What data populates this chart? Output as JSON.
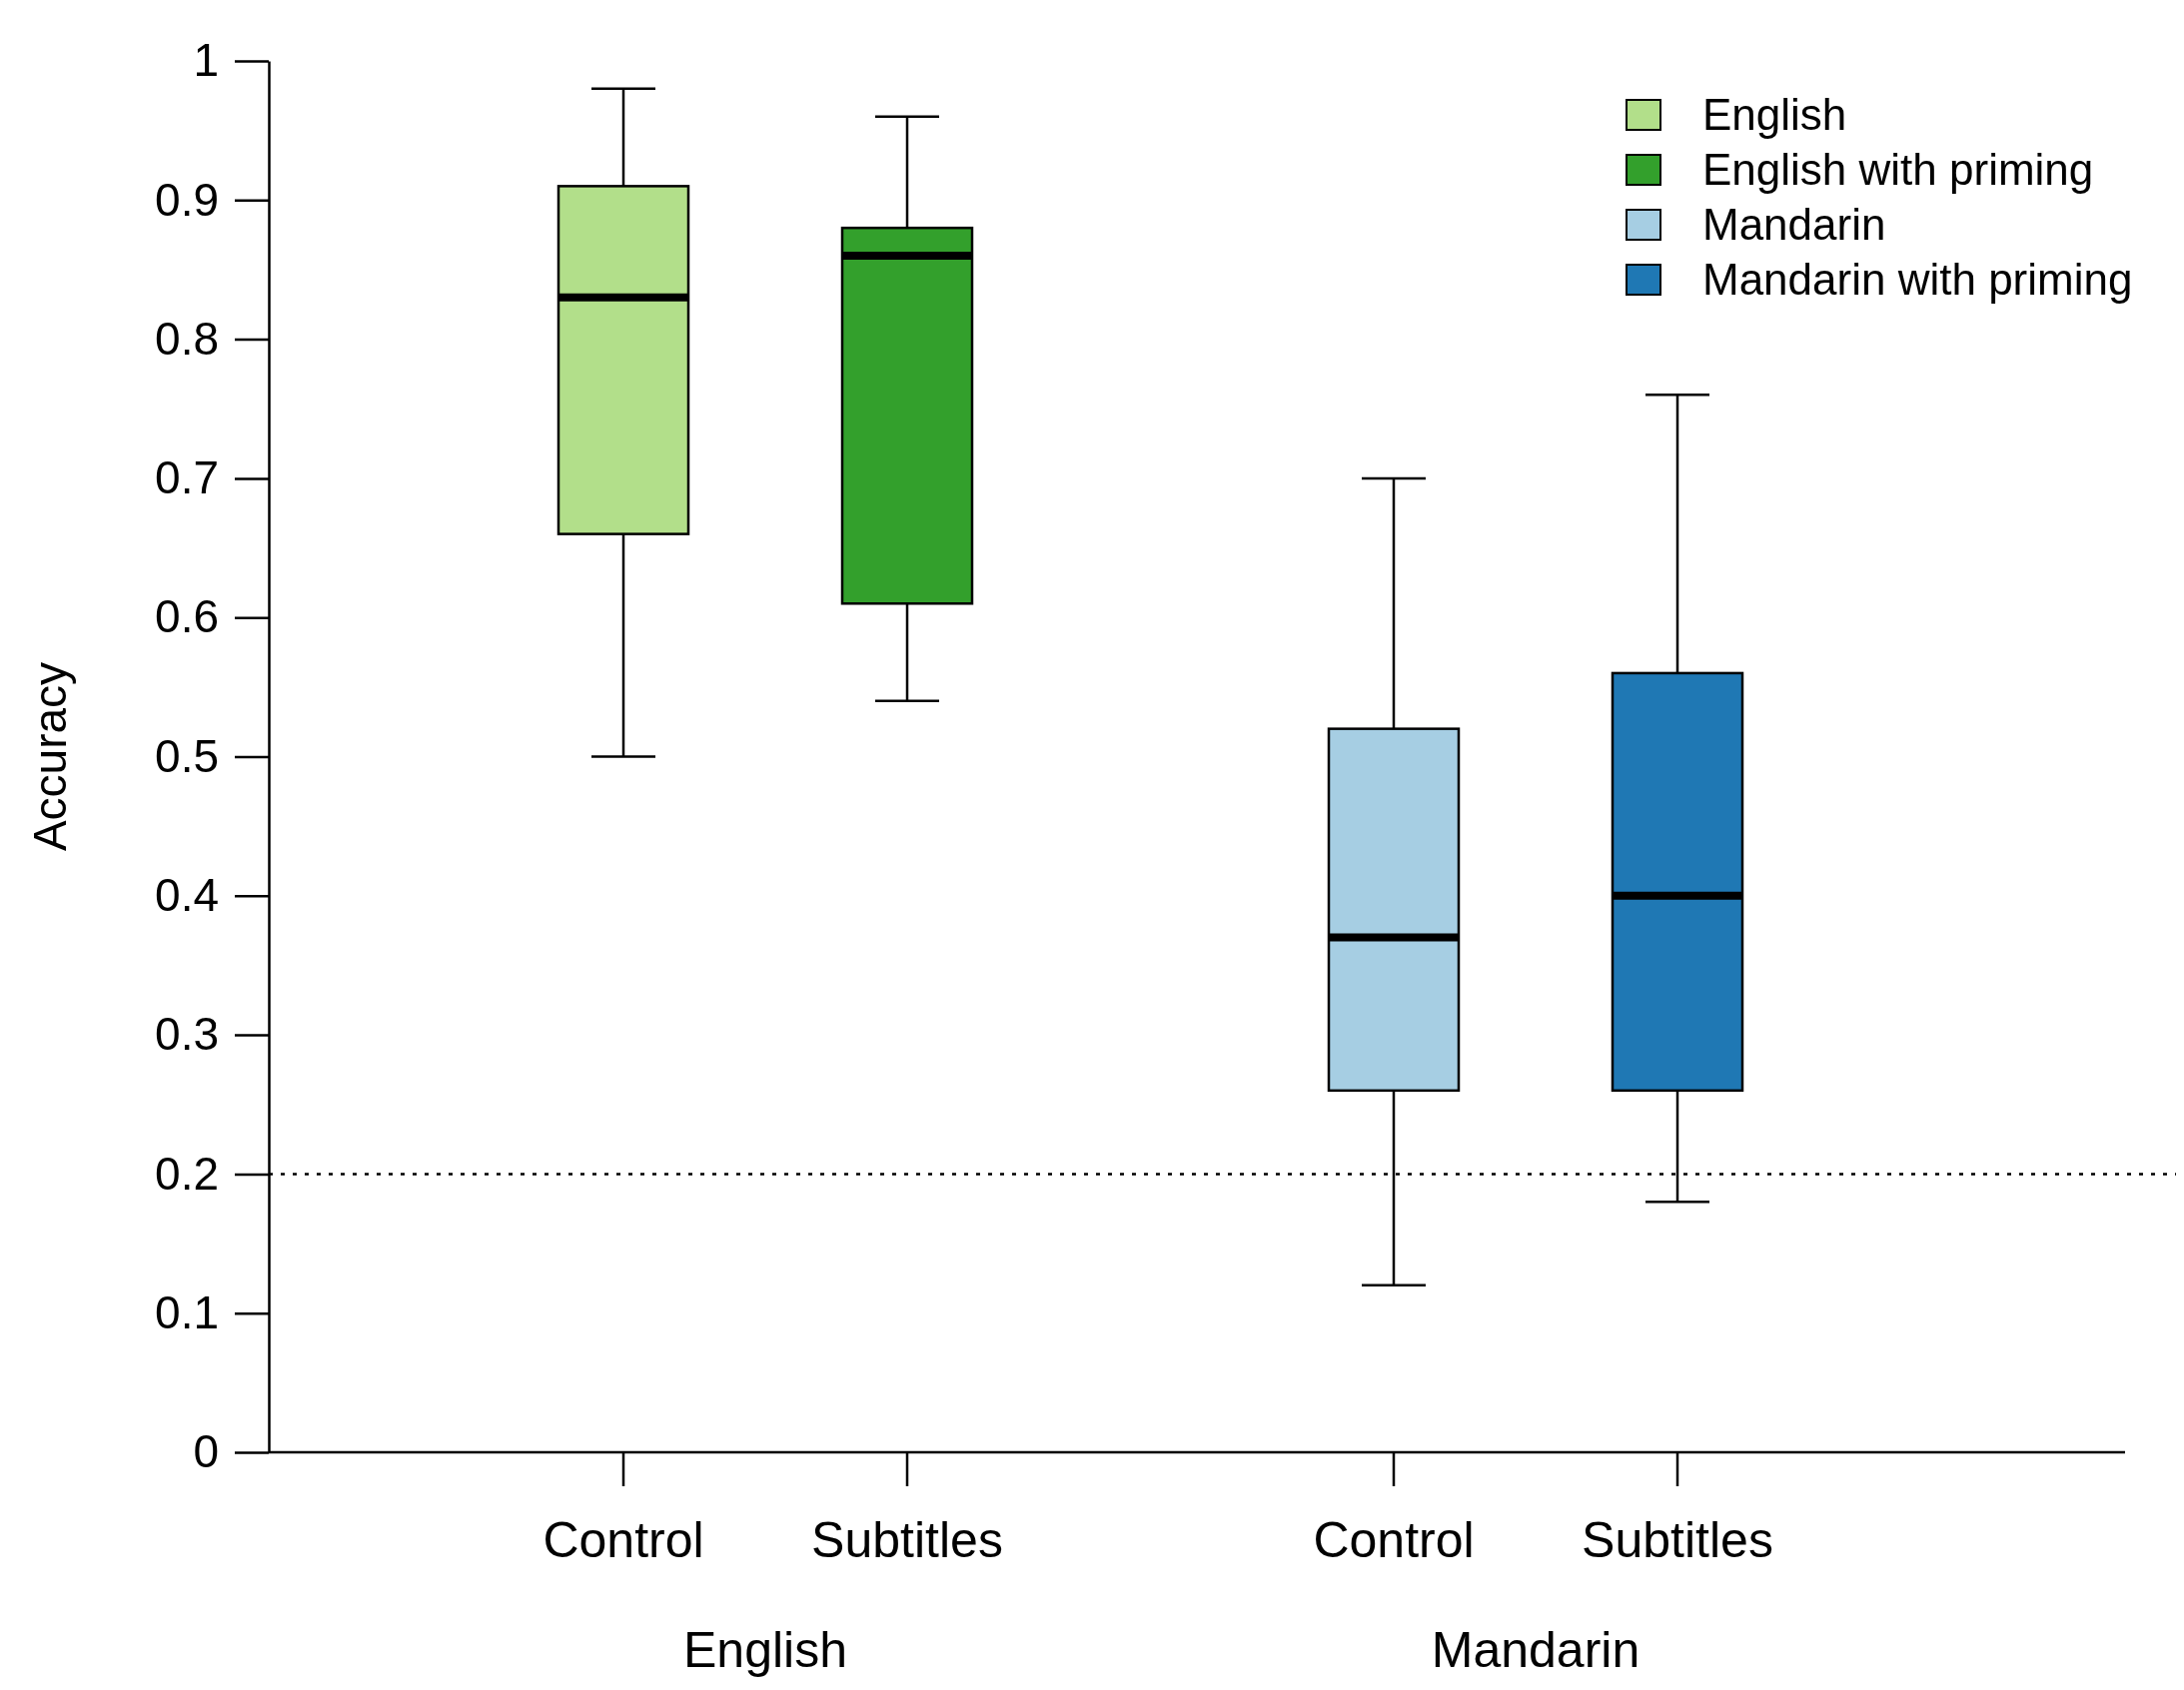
{
  "chart_data": {
    "type": "box",
    "ylabel": "Accuracy",
    "categories": [
      "Control",
      "Subtitles",
      "Control",
      "Subtitles"
    ],
    "ylim": [
      0,
      1
    ],
    "yticks": [
      0,
      0.1,
      0.2,
      0.3,
      0.4,
      0.5,
      0.6,
      0.7,
      0.8,
      0.9,
      1
    ],
    "series": [
      {
        "name": "English",
        "color": "#b2df8a",
        "boxes": [
          {
            "low": 0.5,
            "q1": 0.66,
            "median": 0.83,
            "q3": 0.91,
            "high": 0.98
          },
          null,
          null,
          null
        ]
      },
      {
        "name": "English with priming",
        "color": "#33a02c",
        "boxes": [
          null,
          {
            "low": 0.54,
            "q1": 0.61,
            "median": 0.86,
            "q3": 0.88,
            "high": 0.96
          },
          null,
          null
        ]
      },
      {
        "name": "Mandarin",
        "color": "#a6cee3",
        "boxes": [
          null,
          null,
          {
            "low": 0.12,
            "q1": 0.26,
            "median": 0.37,
            "q3": 0.52,
            "high": 0.7
          },
          null
        ]
      },
      {
        "name": "Mandarin with priming",
        "color": "#1f78b4",
        "boxes": [
          null,
          null,
          null,
          {
            "low": 0.18,
            "q1": 0.26,
            "median": 0.4,
            "q3": 0.56,
            "high": 0.76
          }
        ]
      }
    ],
    "ref_lines": [
      {
        "axis": "y",
        "value": 0.2,
        "line_style": "dotted"
      }
    ],
    "annotations": [
      "English",
      "Mandarin"
    ],
    "legend": "top right",
    "grid": false
  }
}
